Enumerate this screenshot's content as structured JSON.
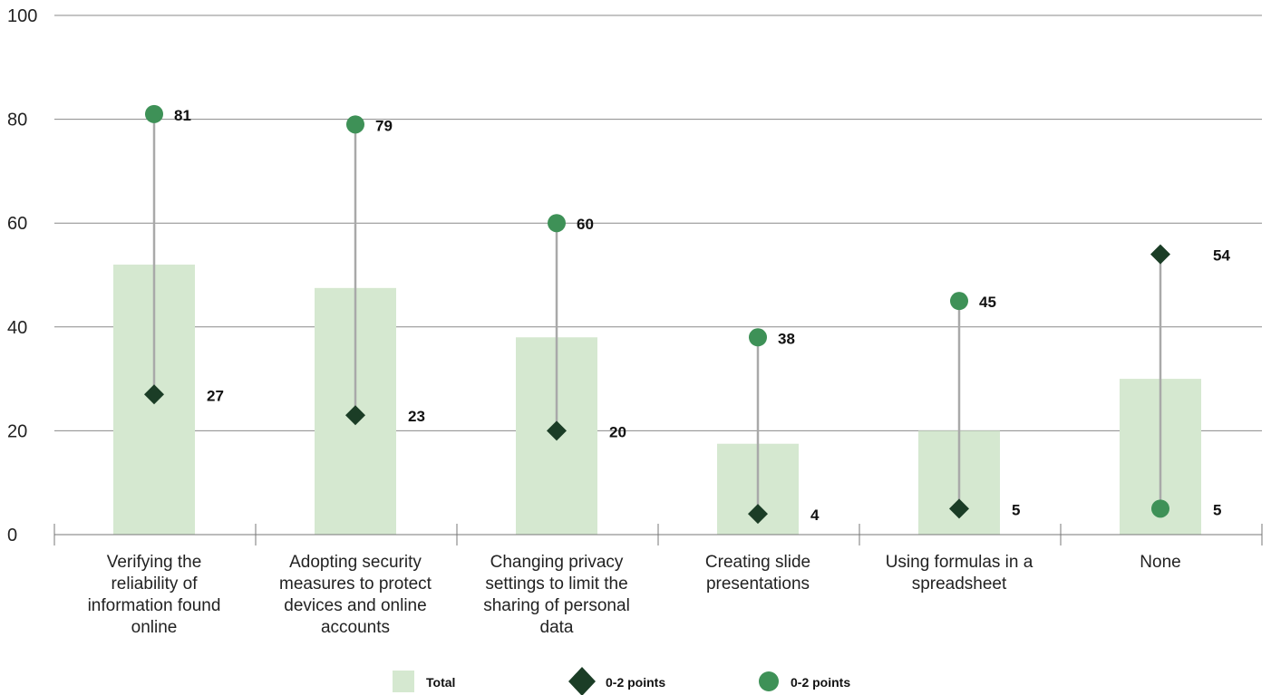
{
  "chart_data": {
    "type": "bar",
    "categories": [
      "Verifying the reliability of information found online",
      "Adopting security measures to protect devices and online accounts",
      "Changing privacy settings to limit the sharing of personal data",
      "Creating slide presentations",
      "Using formulas in a spreadsheet",
      "None"
    ],
    "category_lines": [
      [
        "Verifying the",
        "reliability of",
        "information found",
        "online"
      ],
      [
        "Adopting security",
        "measures to protect",
        "devices and online",
        "accounts"
      ],
      [
        "Changing privacy",
        "settings to limit the",
        "sharing of personal",
        "data"
      ],
      [
        "Creating slide",
        "presentations"
      ],
      [
        "Using formulas in a",
        "spreadsheet"
      ],
      [
        "None"
      ]
    ],
    "ylim": [
      0,
      100
    ],
    "yticks": [
      0,
      20,
      40,
      60,
      80,
      100
    ],
    "grid": true,
    "legend_position": "bottom",
    "series": [
      {
        "name": "Total",
        "mark": "bar",
        "values": [
          52,
          47.5,
          38,
          17.5,
          20,
          30
        ],
        "color": "#d5e8d0"
      },
      {
        "name": "0-2 points",
        "mark": "diamond",
        "values": [
          27,
          23,
          20,
          4,
          5,
          54
        ],
        "color": "#1b3d26"
      },
      {
        "name": "0-2 points",
        "mark": "circle",
        "values": [
          81,
          79,
          60,
          38,
          45,
          5
        ],
        "color": "#3e9157"
      }
    ],
    "labels_diamond": [
      "27",
      "23",
      "20",
      "4",
      "5",
      "54"
    ],
    "labels_circle": [
      "81",
      "79",
      "60",
      "38",
      "45",
      "5"
    ],
    "connector_color": "#a9a9a9",
    "axis_color": "#777777"
  }
}
